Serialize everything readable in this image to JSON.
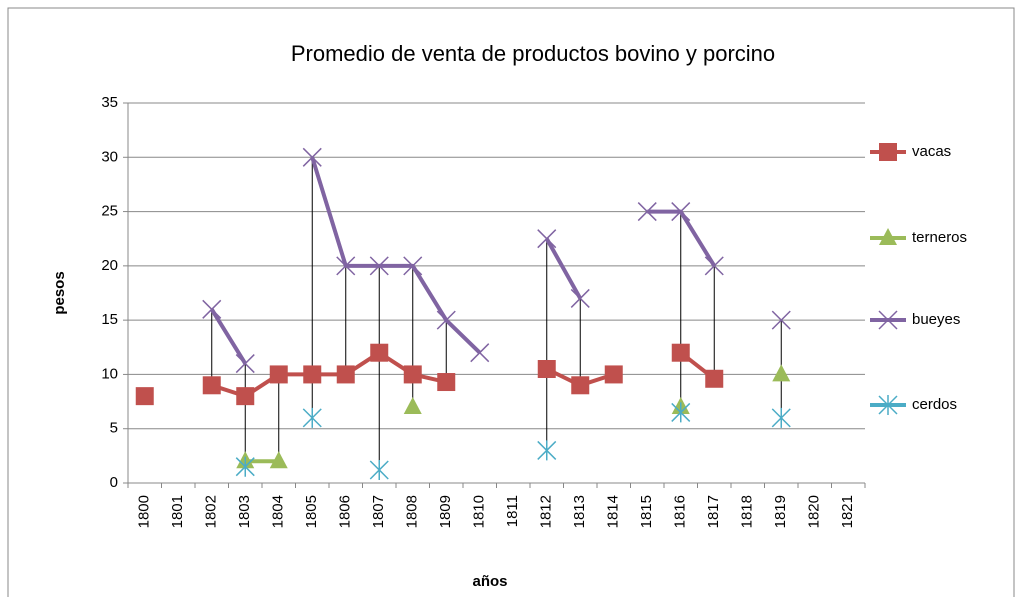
{
  "chart_data": {
    "type": "line",
    "title": "Promedio de venta de productos bovino y porcino",
    "x_label": "años",
    "y_label": "pesos",
    "categories": [
      "1800",
      "1801",
      "1802",
      "1803",
      "1804",
      "1805",
      "1806",
      "1807",
      "1808",
      "1809",
      "1810",
      "1811",
      "1812",
      "1813",
      "1814",
      "1815",
      "1816",
      "1817",
      "1818",
      "1819",
      "1820",
      "1821"
    ],
    "series": [
      {
        "name": "vacas",
        "color": "#c0504d",
        "marker": "square",
        "values": [
          8,
          null,
          9,
          8,
          10,
          10,
          10,
          12,
          10,
          9.3,
          null,
          null,
          10.5,
          9,
          10,
          null,
          12,
          9.6,
          null,
          null,
          null,
          null
        ]
      },
      {
        "name": "terneros",
        "color": "#9bbb59",
        "marker": "triangle",
        "values": [
          null,
          null,
          null,
          2,
          2,
          null,
          null,
          null,
          7,
          null,
          null,
          null,
          null,
          null,
          null,
          null,
          7,
          null,
          null,
          10,
          null,
          null
        ]
      },
      {
        "name": "bueyes",
        "color": "#8064a2",
        "marker": "x",
        "values": [
          null,
          null,
          16,
          11,
          null,
          30,
          20,
          20,
          20,
          15,
          12,
          null,
          22.5,
          17,
          null,
          25,
          25,
          20,
          null,
          15,
          null,
          null
        ]
      },
      {
        "name": "cerdos",
        "color": "#4bacc6",
        "marker": "star",
        "values": [
          null,
          null,
          null,
          1.5,
          null,
          6,
          null,
          1.2,
          null,
          null,
          null,
          null,
          3,
          null,
          null,
          null,
          6.5,
          null,
          null,
          6,
          null,
          null
        ]
      }
    ],
    "ylim": [
      0,
      35
    ],
    "yticks": [
      0,
      5,
      10,
      15,
      20,
      25,
      30,
      35
    ],
    "grid": true,
    "high_low_lines": true,
    "legend": "right"
  }
}
